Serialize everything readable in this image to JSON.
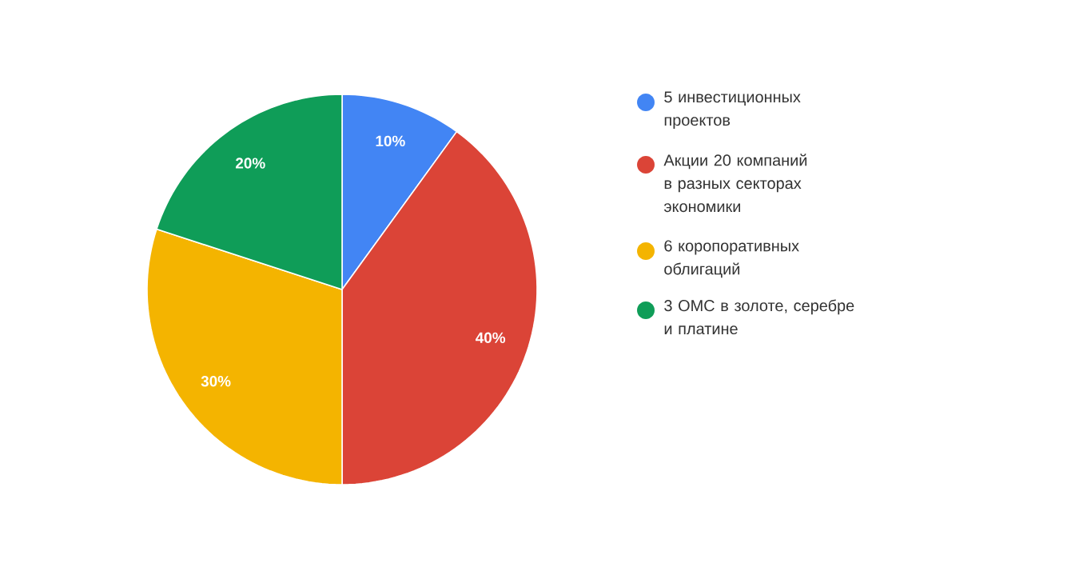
{
  "chart_data": {
    "type": "pie",
    "categories": [
      "5 инвестиционных проектов",
      "Акции 20 компаний в разных секторах экономики",
      "6 коропоративных облигаций",
      "3 ОМС в золоте, серебре и платине"
    ],
    "values": [
      10,
      40,
      30,
      20
    ],
    "colors": [
      "#4285f4",
      "#db4437",
      "#f4b400",
      "#0f9d58"
    ],
    "value_labels": [
      "10%",
      "40%",
      "30%",
      "20%"
    ],
    "legend": "right"
  }
}
